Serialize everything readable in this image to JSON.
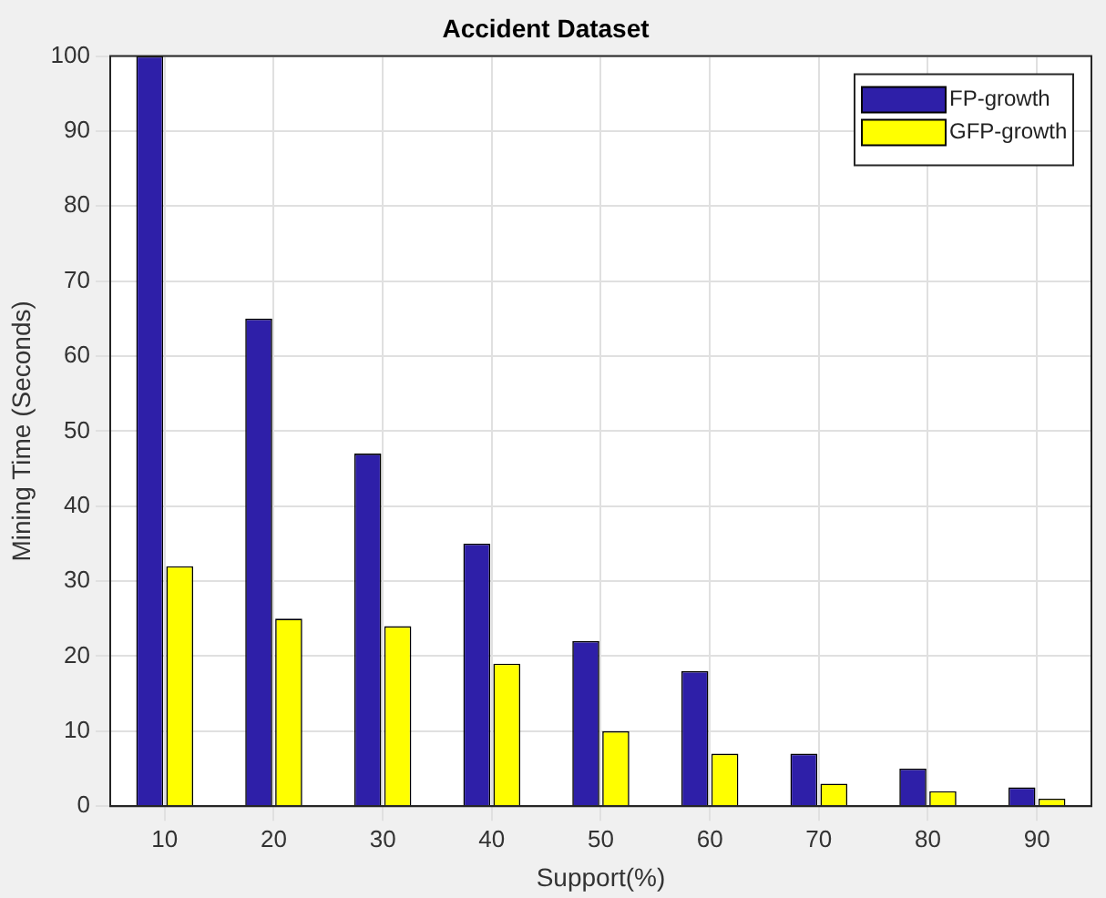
{
  "chart_data": {
    "type": "bar",
    "title": "Accident Dataset",
    "xlabel": "Support(%)",
    "ylabel": "Mining Time (Seconds)",
    "categories": [
      "10",
      "20",
      "30",
      "40",
      "50",
      "60",
      "70",
      "80",
      "90"
    ],
    "series": [
      {
        "name": "FP-growth",
        "color": "#2e1fa8",
        "values": [
          100,
          65,
          47,
          35,
          22,
          18,
          7,
          5,
          2.5
        ]
      },
      {
        "name": "GFP-growth",
        "color": "#ffff00",
        "values": [
          32,
          25,
          24,
          19,
          10,
          7,
          3,
          2,
          1
        ]
      }
    ],
    "ylim": [
      0,
      100
    ],
    "yticks": [
      0,
      10,
      20,
      30,
      40,
      50,
      60,
      70,
      80,
      90,
      100
    ],
    "grid": true,
    "legend": "top right"
  }
}
